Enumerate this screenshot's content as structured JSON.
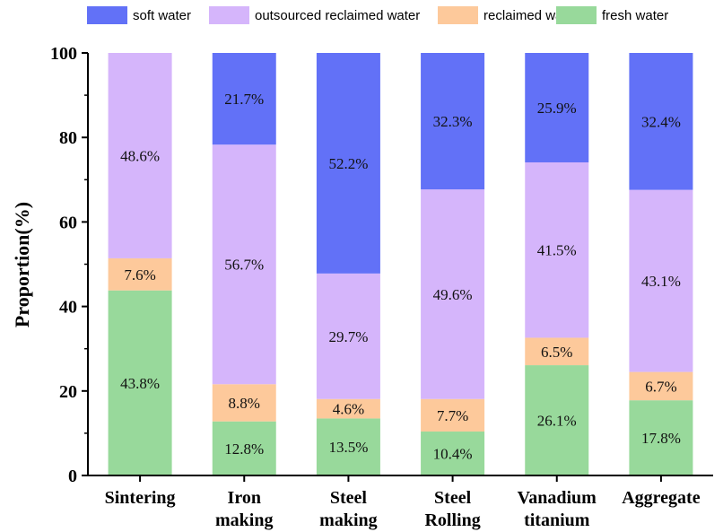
{
  "chart_data": {
    "type": "bar",
    "stacked": true,
    "categories": [
      [
        "Sintering"
      ],
      [
        "Iron",
        "making"
      ],
      [
        "Steel",
        "making"
      ],
      [
        "Steel",
        "Rolling"
      ],
      [
        "Vanadium",
        "titanium"
      ],
      [
        "Aggregate"
      ]
    ],
    "series": [
      {
        "name": "fresh water",
        "color": "#98d99b",
        "values": [
          43.8,
          12.8,
          13.5,
          10.4,
          26.1,
          17.8
        ],
        "labels": [
          "43.8%",
          "12.8%",
          "13.5%",
          "10.4%",
          "26.1%",
          "17.8%"
        ]
      },
      {
        "name": "reclaimed water",
        "color": "#fdc99b",
        "values": [
          7.6,
          8.8,
          4.6,
          7.7,
          6.5,
          6.7
        ],
        "labels": [
          "7.6%",
          "8.8%",
          "4.6%",
          "7.7%",
          "6.5%",
          "6.7%"
        ]
      },
      {
        "name": "outsourced reclaimed water",
        "color": "#d5b5fb",
        "values": [
          48.6,
          56.7,
          29.7,
          49.6,
          41.5,
          43.1
        ],
        "labels": [
          "48.6%",
          "56.7%",
          "29.7%",
          "49.6%",
          "41.5%",
          "43.1%"
        ]
      },
      {
        "name": "soft water",
        "color": "#6271f7",
        "values": [
          0,
          21.7,
          52.2,
          32.3,
          25.9,
          32.4
        ],
        "labels": [
          "",
          "21.7%",
          "52.2%",
          "32.3%",
          "25.9%",
          "32.4%"
        ]
      }
    ],
    "legend_order": [
      "soft water",
      "outsourced reclaimed water",
      "reclaimed water",
      "fresh water"
    ],
    "ylabel": "Proportion(%)",
    "xlabel": "",
    "ylim": [
      0,
      100
    ],
    "yticks": [
      0,
      20,
      40,
      60,
      80,
      100
    ],
    "legend_position": "top",
    "grid": false
  }
}
